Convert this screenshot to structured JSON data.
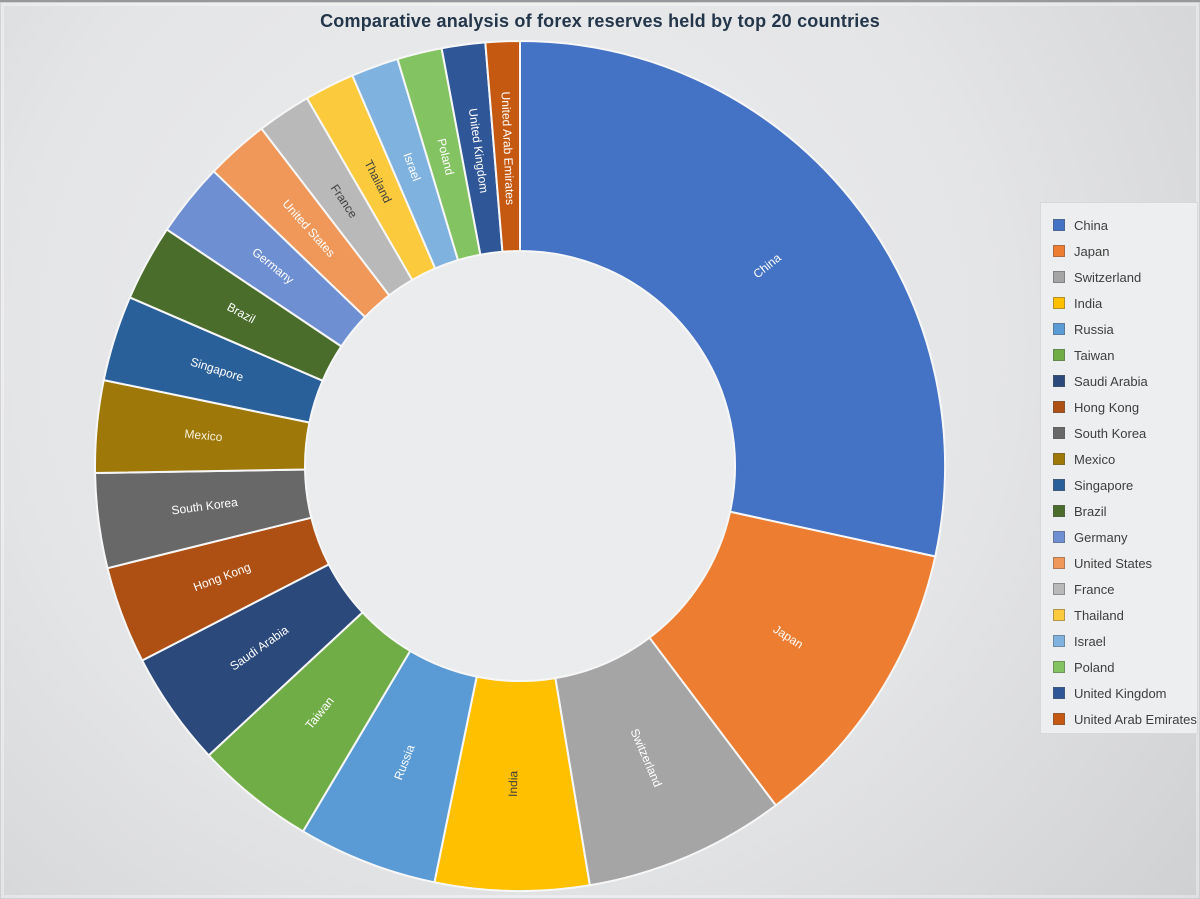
{
  "title": "Comparative analysis of forex reserves held by top 20 countries",
  "background": {
    "page_light": "#ECEDEE",
    "page_dark": "#CED0D2",
    "donut_hole": "#EBECED",
    "title_color": "#24364A",
    "legend_bg": "#EDEEEF",
    "legend_border": "#D8D9DA",
    "legend_text": "#3E3E3E"
  },
  "chart_data": {
    "type": "pie",
    "subtype": "donut",
    "title": "Comparative analysis of forex reserves held by top 20 countries",
    "legend_position": "right",
    "start_angle_deg": 0,
    "direction": "clockwise",
    "donut_hole_ratio": 0.506,
    "slice_border_color": "#F7F7F8",
    "units": "estimated share of total reserves, %",
    "series": [
      {
        "name": "China",
        "share_pct": 28.4,
        "color": "#4472C4",
        "label_color": "#FFFFFF"
      },
      {
        "name": "Japan",
        "share_pct": 11.3,
        "color": "#ED7D31",
        "label_color": "#FFFFFF"
      },
      {
        "name": "Switzerland",
        "share_pct": 7.65,
        "color": "#A5A5A5",
        "label_color": "#FFFFFF"
      },
      {
        "name": "India",
        "share_pct": 5.85,
        "color": "#FFC000",
        "label_color": "#3F3F3F"
      },
      {
        "name": "Russia",
        "share_pct": 5.3,
        "color": "#5B9BD5",
        "label_color": "#FFFFFF"
      },
      {
        "name": "Taiwan",
        "share_pct": 4.55,
        "color": "#70AD47",
        "label_color": "#FFFFFF"
      },
      {
        "name": "Saudi Arabia",
        "share_pct": 4.35,
        "color": "#2B4A7B",
        "label_color": "#FFFFFF"
      },
      {
        "name": "Hong Kong",
        "share_pct": 3.7,
        "color": "#AE5014",
        "label_color": "#FFFFFF"
      },
      {
        "name": "South Korea",
        "share_pct": 3.6,
        "color": "#686868",
        "label_color": "#FFFFFF"
      },
      {
        "name": "Mexico",
        "share_pct": 3.5,
        "color": "#9E7909",
        "label_color": "#F8F1DC"
      },
      {
        "name": "Singapore",
        "share_pct": 3.25,
        "color": "#2A6099",
        "label_color": "#FFFFFF"
      },
      {
        "name": "Brazil",
        "share_pct": 2.9,
        "color": "#4A6D2C",
        "label_color": "#FFFFFF"
      },
      {
        "name": "Germany",
        "share_pct": 2.8,
        "color": "#6E8FD2",
        "label_color": "#FFFFFF"
      },
      {
        "name": "United States",
        "share_pct": 2.4,
        "color": "#F0975A",
        "label_color": "#FFFFFF"
      },
      {
        "name": "France",
        "share_pct": 2.05,
        "color": "#B9B9B9",
        "label_color": "#404040"
      },
      {
        "name": "Thailand",
        "share_pct": 1.9,
        "color": "#FCCB3D",
        "label_color": "#3F3F3F"
      },
      {
        "name": "Israel",
        "share_pct": 1.8,
        "color": "#7FB2DE",
        "label_color": "#FFFFFF"
      },
      {
        "name": "Poland",
        "share_pct": 1.7,
        "color": "#84C361",
        "label_color": "#FFFFFF"
      },
      {
        "name": "United Kingdom",
        "share_pct": 1.65,
        "color": "#2F5797",
        "label_color": "#FFFFFF"
      },
      {
        "name": "United Arab Emirates",
        "share_pct": 1.3,
        "color": "#C65911",
        "label_color": "#FFFFFF"
      }
    ]
  }
}
